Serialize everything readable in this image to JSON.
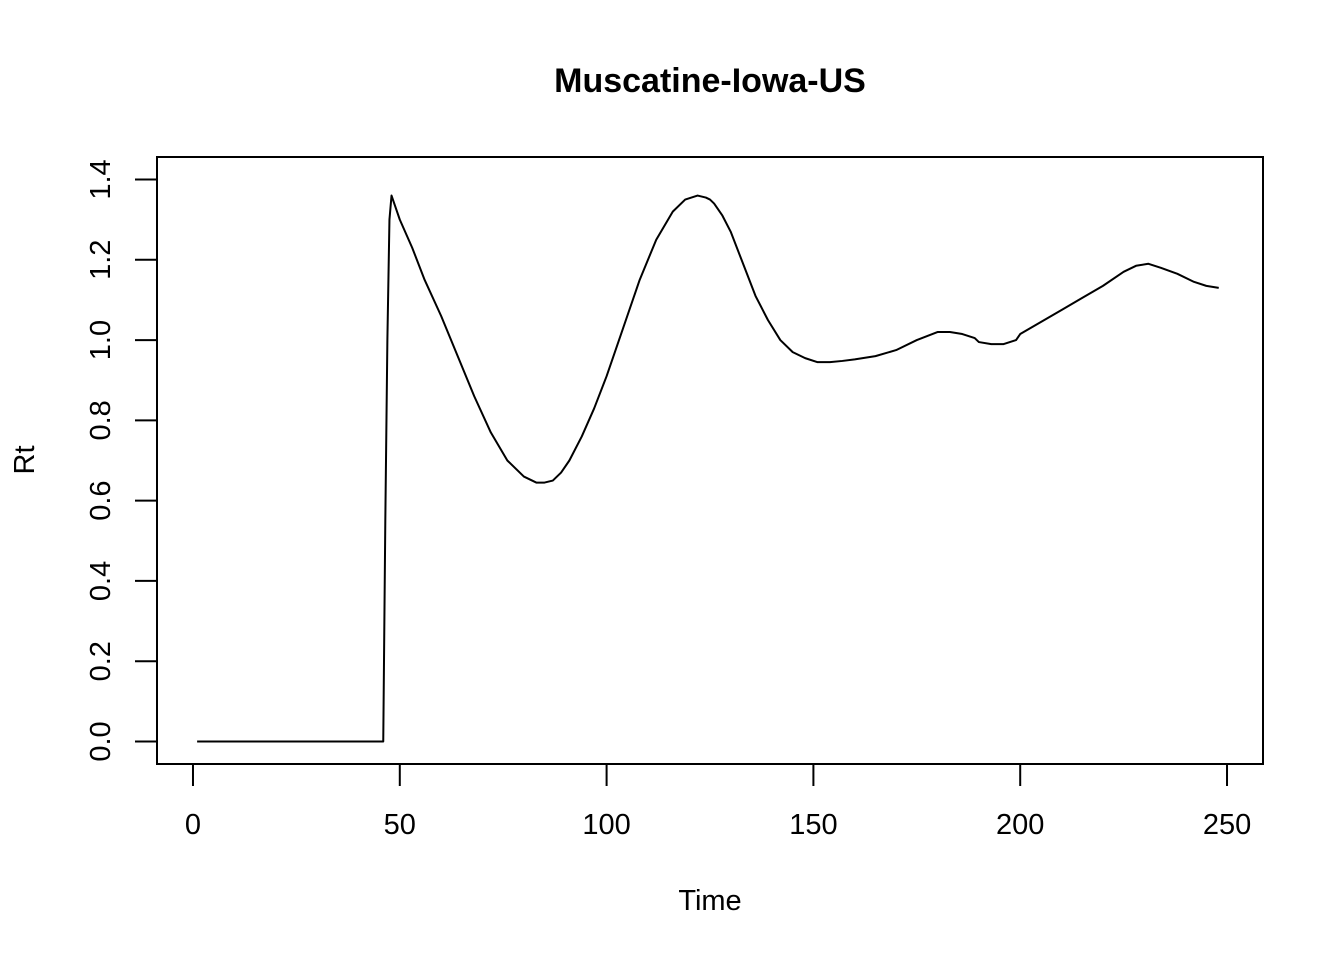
{
  "chart_data": {
    "type": "line",
    "title": "Muscatine-Iowa-US",
    "xlabel": "Time",
    "ylabel": "Rt",
    "xlim": [
      -8.7,
      258.7
    ],
    "ylim": [
      -0.056,
      1.456
    ],
    "x_ticks": [
      0,
      50,
      100,
      150,
      200,
      250
    ],
    "x_tick_labels": [
      "0",
      "50",
      "100",
      "150",
      "200",
      "250"
    ],
    "y_ticks": [
      0.0,
      0.2,
      0.4,
      0.6,
      0.8,
      1.0,
      1.2,
      1.4
    ],
    "y_tick_labels": [
      "0.0",
      "0.2",
      "0.4",
      "0.6",
      "0.8",
      "1.0",
      "1.2",
      "1.4"
    ],
    "grid": false,
    "legend": "none",
    "line_color": "#000000",
    "series": [
      {
        "x": [
          1,
          10,
          20,
          30,
          40,
          46,
          46.5,
          47,
          47.5,
          48,
          50,
          53,
          56,
          60,
          64,
          68,
          72,
          76,
          80,
          83,
          85,
          87,
          89,
          91,
          94,
          97,
          100,
          104,
          108,
          112,
          116,
          119,
          122,
          124,
          125,
          126,
          128,
          130,
          133,
          136,
          139,
          142,
          145,
          148,
          151,
          154,
          157,
          160,
          165,
          170,
          175,
          180,
          183,
          186,
          189,
          190,
          193,
          196,
          199,
          200,
          205,
          210,
          215,
          220,
          225,
          228,
          231,
          234,
          238,
          242,
          245,
          248
        ],
        "y": [
          0,
          0,
          0,
          0,
          0,
          0,
          0.55,
          1.0,
          1.3,
          1.36,
          1.3,
          1.23,
          1.15,
          1.06,
          0.96,
          0.86,
          0.77,
          0.7,
          0.66,
          0.645,
          0.645,
          0.65,
          0.67,
          0.7,
          0.76,
          0.83,
          0.91,
          1.03,
          1.15,
          1.25,
          1.32,
          1.35,
          1.36,
          1.355,
          1.35,
          1.34,
          1.31,
          1.27,
          1.19,
          1.11,
          1.05,
          1.0,
          0.97,
          0.955,
          0.945,
          0.945,
          0.948,
          0.952,
          0.96,
          0.975,
          1.0,
          1.02,
          1.02,
          1.015,
          1.005,
          0.995,
          0.99,
          0.99,
          1.0,
          1.015,
          1.045,
          1.075,
          1.105,
          1.135,
          1.17,
          1.185,
          1.19,
          1.18,
          1.165,
          1.145,
          1.135,
          1.13
        ]
      }
    ]
  }
}
